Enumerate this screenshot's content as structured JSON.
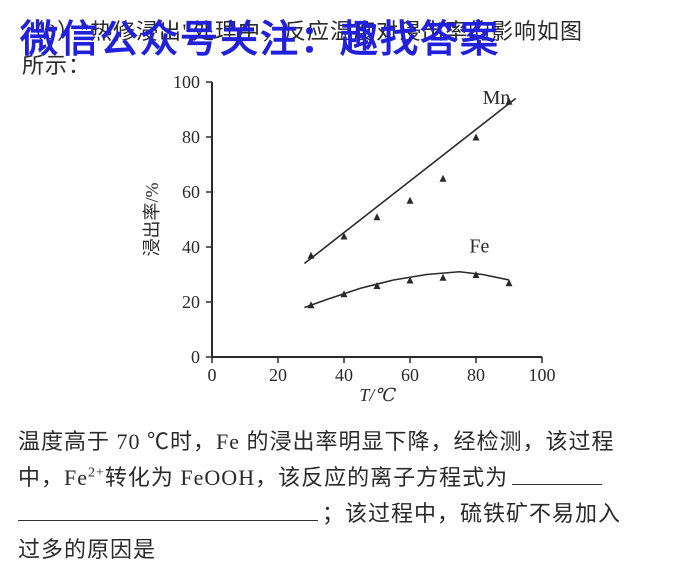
{
  "watermark": "微信公众号关注：趣找答案",
  "question": {
    "line1": "（3）\"热修浸出\"处理中，反应温度对浸出率的影响如图",
    "line2": "所示："
  },
  "chart": {
    "type": "line",
    "background_color": "#ffffff",
    "plot_border_color": "#2a2a2a",
    "plot_border_width": 2,
    "xlabel": "T/℃",
    "ylabel": "浸出率/%",
    "label_fontsize": 18,
    "tick_fontsize": 18,
    "xlim": [
      0,
      100
    ],
    "ylim": [
      0,
      100
    ],
    "xticks": [
      0,
      20,
      40,
      60,
      80,
      100
    ],
    "yticks": [
      0,
      20,
      40,
      60,
      80,
      100
    ],
    "tick_len": 6,
    "series": [
      {
        "name": "Mn",
        "label": "Mn",
        "label_pos": {
          "x": 82,
          "y": 92
        },
        "color": "#2a2a2a",
        "line_width": 1.6,
        "marker": "triangle",
        "marker_size": 7,
        "x": [
          30,
          40,
          50,
          60,
          70,
          80,
          90
        ],
        "y": [
          37,
          44,
          51,
          57,
          65,
          80,
          93
        ],
        "fit_line": {
          "x1": 28,
          "y1": 34,
          "x2": 92,
          "y2": 94
        }
      },
      {
        "name": "Fe",
        "label": "Fe",
        "label_pos": {
          "x": 78,
          "y": 38
        },
        "color": "#2a2a2a",
        "line_width": 1.6,
        "marker": "triangle",
        "marker_size": 7,
        "x": [
          30,
          40,
          50,
          60,
          70,
          80,
          90
        ],
        "y": [
          19,
          23,
          26,
          28,
          29,
          30,
          27
        ],
        "curve": [
          {
            "x": 28,
            "y": 18
          },
          {
            "x": 35,
            "y": 21
          },
          {
            "x": 45,
            "y": 25
          },
          {
            "x": 55,
            "y": 28
          },
          {
            "x": 65,
            "y": 30
          },
          {
            "x": 75,
            "y": 31
          },
          {
            "x": 82,
            "y": 30
          },
          {
            "x": 90,
            "y": 28
          }
        ]
      }
    ]
  },
  "explanation": {
    "line1": "温度高于 70 ℃时，Fe 的浸出率明显下降，经检测，该过程",
    "line2_prefix": "中，Fe",
    "fe_charge": "2+",
    "line2_mid": "转化为 FeOOH，该反应的离子方程式为",
    "line3_suffix": "；该过程中，硫铁矿不易加入",
    "line4": "过多的原因是"
  }
}
